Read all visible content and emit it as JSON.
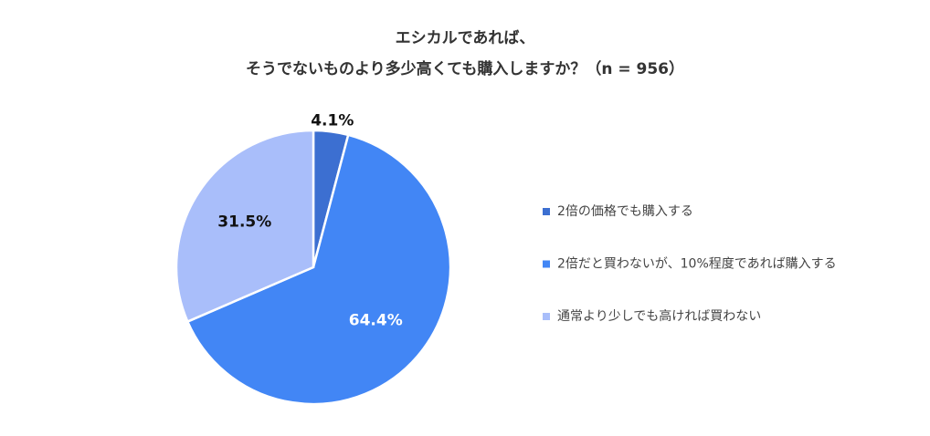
{
  "chart_data": {
    "type": "pie",
    "title": [
      "エシカルであれば、",
      "そうでないものより多少高くても購入しますか？（n = 956）"
    ],
    "categories": [
      "2倍の価格でも購入する",
      "2倍だと買わないが、10%程度であれば購入する",
      "通常より少しでも高ければ買わない"
    ],
    "values": [
      4.1,
      64.4,
      31.5
    ],
    "value_labels": [
      "4.1%",
      "64.4%",
      "31.5%"
    ],
    "colors": [
      "#3c6fd1",
      "#4286f5",
      "#a9befa"
    ],
    "legend": "right"
  }
}
